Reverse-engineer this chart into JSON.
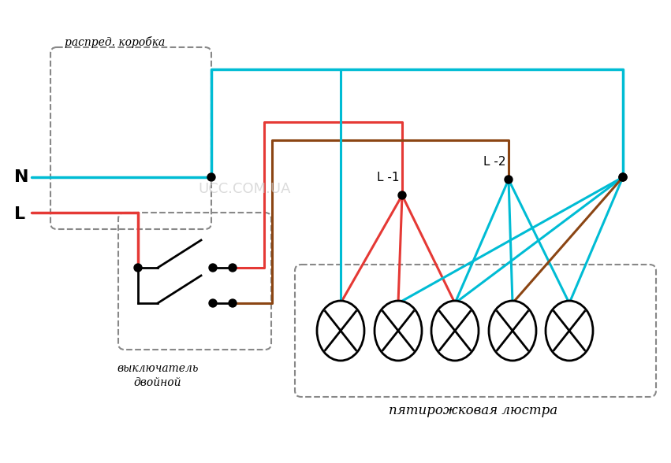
{
  "bg_color": "#ffffff",
  "wire_cyan": "#00bcd4",
  "wire_red": "#e53935",
  "wire_brown": "#8B4513",
  "wire_black": "#000000",
  "dot_color": "#000000",
  "dashed_color": "#888888",
  "text_color": "#000000",
  "watermark_color": "#cccccc",
  "label_N": "N",
  "label_L": "L",
  "label_L1": "L -1",
  "label_L2": "L -2",
  "label_distrib": "распред. коробка",
  "label_switch": "выключатель\nдвойной",
  "label_chandelier": "пятирожковая люстра",
  "watermark": "UCC.COM.UA"
}
